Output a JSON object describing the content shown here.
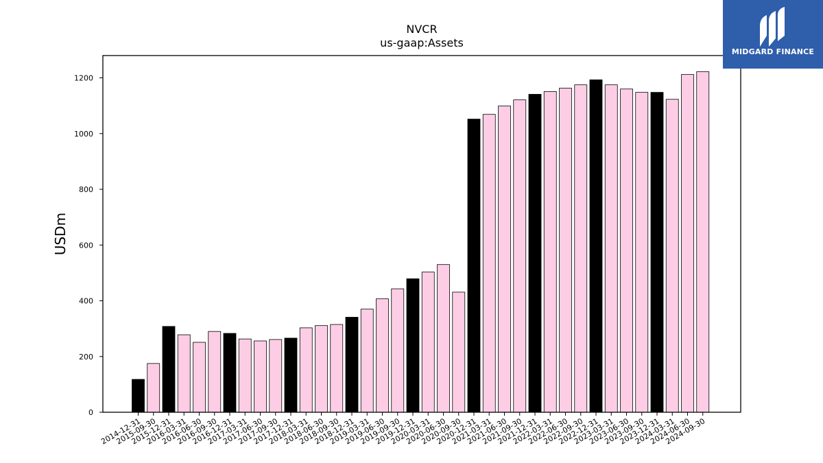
{
  "logo": {
    "text": "MIDGARD FINANCE",
    "background": "#2f5eab"
  },
  "chart_data": {
    "type": "bar",
    "title": "NVCR",
    "subtitle": "us-gaap:Assets",
    "ylabel": "USDm",
    "xlabel": "",
    "ylim": [
      0,
      1280
    ],
    "yticks": [
      0,
      200,
      400,
      600,
      800,
      1000,
      1200
    ],
    "grid": false,
    "colors": {
      "annual": "#000000",
      "quarterly": "#fccde5"
    },
    "categories": [
      "2014-12-31",
      "2015-09-30",
      "2015-12-31",
      "2016-03-31",
      "2016-06-30",
      "2016-09-30",
      "2016-12-31",
      "2017-03-31",
      "2017-06-30",
      "2017-09-30",
      "2017-12-31",
      "2018-03-31",
      "2018-06-30",
      "2018-09-30",
      "2018-12-31",
      "2019-03-31",
      "2019-06-30",
      "2019-09-30",
      "2019-12-31",
      "2020-03-31",
      "2020-06-30",
      "2020-09-30",
      "2020-12-31",
      "2021-03-31",
      "2021-06-30",
      "2021-09-30",
      "2021-12-31",
      "2022-03-31",
      "2022-06-30",
      "2022-09-30",
      "2022-12-31",
      "2023-03-31",
      "2023-06-30",
      "2023-09-30",
      "2023-12-31",
      "2024-03-31",
      "2024-06-30",
      "2024-09-30"
    ],
    "values": [
      118,
      175,
      308,
      278,
      251,
      290,
      283,
      263,
      256,
      261,
      266,
      303,
      311,
      315,
      341,
      370,
      407,
      443,
      479,
      503,
      530,
      431,
      1052,
      1069,
      1099,
      1121,
      1141,
      1151,
      1163,
      1175,
      1193,
      1175,
      1160,
      1148,
      1148,
      1123,
      1212,
      1222
    ],
    "annual": [
      true,
      false,
      true,
      false,
      false,
      false,
      true,
      false,
      false,
      false,
      true,
      false,
      false,
      false,
      true,
      false,
      false,
      false,
      true,
      false,
      false,
      false,
      true,
      false,
      false,
      false,
      true,
      false,
      false,
      false,
      true,
      false,
      false,
      false,
      true,
      false,
      false,
      false
    ]
  }
}
